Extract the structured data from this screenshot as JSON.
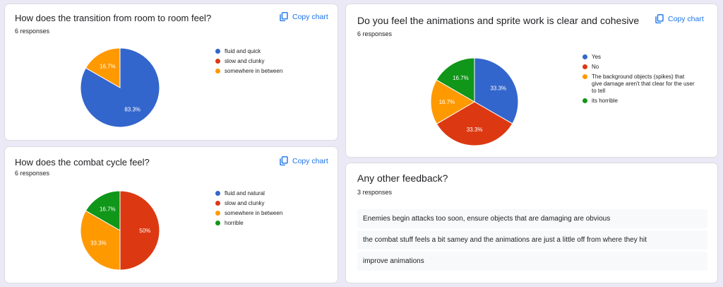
{
  "copy_label": "Copy chart",
  "colors": {
    "blue": "#3366cc",
    "red": "#dc3912",
    "orange": "#ff9900",
    "green": "#109618",
    "accent": "#1a73e8"
  },
  "q1": {
    "title": "How does the transition from room to room feel?",
    "responses": "6 responses",
    "legend": [
      {
        "label": "fluid and quick",
        "color": "#3366cc"
      },
      {
        "label": "slow and clunky",
        "color": "#dc3912"
      },
      {
        "label": "somewhere in between",
        "color": "#ff9900"
      }
    ]
  },
  "q2": {
    "title": "How does the combat cycle feel?",
    "responses": "6 responses",
    "legend": [
      {
        "label": "fluid and natural",
        "color": "#3366cc"
      },
      {
        "label": "slow and clunky",
        "color": "#dc3912"
      },
      {
        "label": "somewhere in between",
        "color": "#ff9900"
      },
      {
        "label": "horrible",
        "color": "#109618"
      }
    ]
  },
  "q3": {
    "title": "Do you feel the animations and sprite work is clear and cohesive",
    "responses": "6 responses",
    "legend": [
      {
        "label": "Yes",
        "color": "#3366cc"
      },
      {
        "label": "No",
        "color": "#dc3912"
      },
      {
        "label": "The background objects (spikes) that give damage aren't that clear for the user to tell",
        "color": "#ff9900"
      },
      {
        "label": "its horrible",
        "color": "#109618"
      }
    ]
  },
  "q4": {
    "title": "Any other feedback?",
    "responses": "3 responses",
    "answers": [
      "Enemies begin attacks too soon, ensure objects that are damaging are obvious",
      "the combat stuff feels a bit samey and the animations are just a little off from where they hit",
      "improve animations"
    ]
  },
  "chart_data": [
    {
      "type": "pie",
      "title": "How does the transition from room to room feel?",
      "categories": [
        "fluid and quick",
        "slow and clunky",
        "somewhere in between"
      ],
      "values": [
        83.3,
        0,
        16.7
      ],
      "labels": [
        "83.3%",
        "",
        "16.7%"
      ],
      "colors": [
        "#3366cc",
        "#dc3912",
        "#ff9900"
      ],
      "legend": "right"
    },
    {
      "type": "pie",
      "title": "How does the combat cycle feel?",
      "categories": [
        "fluid and natural",
        "slow and clunky",
        "somewhere in between",
        "horrible"
      ],
      "values": [
        0,
        50,
        33.3,
        16.7
      ],
      "labels": [
        "",
        "50%",
        "33.3%",
        "16.7%"
      ],
      "colors": [
        "#3366cc",
        "#dc3912",
        "#ff9900",
        "#109618"
      ],
      "legend": "right"
    },
    {
      "type": "pie",
      "title": "Do you feel the animations and sprite work is clear and cohesive",
      "categories": [
        "Yes",
        "No",
        "The background objects (spikes) that give damage aren't that clear for the user to tell",
        "its horrible"
      ],
      "values": [
        33.3,
        33.3,
        16.7,
        16.7
      ],
      "labels": [
        "33.3%",
        "33.3%",
        "16.7%",
        "16.7%"
      ],
      "colors": [
        "#3366cc",
        "#dc3912",
        "#ff9900",
        "#109618"
      ],
      "legend": "right"
    }
  ]
}
